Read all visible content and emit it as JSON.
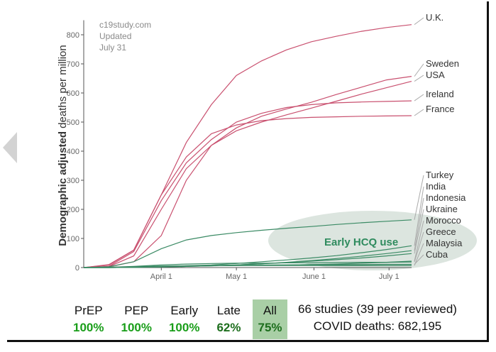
{
  "chart_data": {
    "type": "line",
    "ylabel_bold": "Demographic adjusted",
    "ylabel_rest": " deaths per million",
    "ylim": [
      0,
      850
    ],
    "yticks": [
      0,
      100,
      200,
      300,
      400,
      500,
      600,
      700,
      800
    ],
    "x_ticks": [
      "April 1",
      "May 1",
      "June 1",
      "July 1"
    ],
    "grid": false,
    "note": [
      "c19study.com",
      "Updated",
      "July 31"
    ],
    "annotation": "Early HCQ use",
    "x_index": [
      0,
      10,
      20,
      31,
      41,
      51,
      61,
      71,
      81,
      91,
      101,
      111,
      121,
      131
    ],
    "series": [
      {
        "name": "U.K.",
        "group": "red",
        "values": [
          0,
          10,
          60,
          250,
          430,
          560,
          660,
          710,
          748,
          776,
          795,
          812,
          825,
          835
        ]
      },
      {
        "name": "Sweden",
        "group": "red",
        "values": [
          0,
          2,
          20,
          110,
          300,
          420,
          480,
          520,
          545,
          568,
          595,
          620,
          645,
          657
        ]
      },
      {
        "name": "USA",
        "group": "red",
        "values": [
          0,
          3,
          40,
          200,
          340,
          420,
          470,
          500,
          525,
          548,
          572,
          596,
          618,
          640
        ]
      },
      {
        "name": "Ireland",
        "group": "red",
        "values": [
          0,
          4,
          55,
          230,
          360,
          440,
          500,
          530,
          550,
          560,
          566,
          569,
          571,
          573
        ]
      },
      {
        "name": "France",
        "group": "red",
        "values": [
          0,
          8,
          60,
          250,
          380,
          460,
          490,
          505,
          512,
          516,
          518,
          520,
          521,
          522
        ]
      },
      {
        "name": "Turkey",
        "group": "green",
        "values": [
          0,
          3,
          20,
          65,
          95,
          110,
          120,
          128,
          135,
          141,
          148,
          154,
          159,
          164
        ]
      },
      {
        "name": "India",
        "group": "green",
        "values": [
          0,
          0,
          1,
          3,
          6,
          9,
          14,
          20,
          26,
          33,
          41,
          51,
          62,
          75
        ]
      },
      {
        "name": "Indonesia",
        "group": "green",
        "values": [
          0,
          0,
          1,
          2,
          4,
          6,
          9,
          13,
          18,
          24,
          31,
          39,
          48,
          58
        ]
      },
      {
        "name": "Ukraine",
        "group": "green",
        "values": [
          0,
          0,
          1,
          2,
          4,
          6,
          9,
          13,
          17,
          22,
          27,
          33,
          40,
          48
        ]
      },
      {
        "name": "Morocco",
        "group": "green",
        "values": [
          0,
          0,
          1,
          3,
          5,
          6,
          7,
          8,
          9,
          10,
          12,
          15,
          18,
          22
        ]
      },
      {
        "name": "Greece",
        "group": "green",
        "values": [
          0,
          1,
          4,
          9,
          12,
          14,
          15,
          15,
          16,
          16,
          17,
          18,
          18,
          19
        ]
      },
      {
        "name": "Malaysia",
        "group": "green",
        "values": [
          0,
          1,
          3,
          5,
          6,
          6,
          7,
          7,
          7,
          7,
          7,
          7,
          7,
          7
        ]
      },
      {
        "name": "Cuba",
        "group": "green",
        "values": [
          0,
          0,
          1,
          3,
          5,
          7,
          8,
          9,
          9,
          10,
          10,
          10,
          11,
          11
        ]
      }
    ],
    "colors": {
      "red": "#c9506f",
      "green": "#3a8a64",
      "axis": "#555555",
      "tick": "#999999",
      "label_arrow": "#aaaaaa",
      "ellipse": "#dce5df"
    }
  },
  "stats": [
    {
      "label": "PrEP",
      "value": "100%",
      "color": "#1a9e1a"
    },
    {
      "label": "PEP",
      "value": "100%",
      "color": "#1a9e1a"
    },
    {
      "label": "Early",
      "value": "100%",
      "color": "#1a9e1a"
    },
    {
      "label": "Late",
      "value": "62%",
      "color": "#1d6e1d"
    },
    {
      "label": "All",
      "value": "75%",
      "color": "#1d6e1d"
    }
  ],
  "summary": {
    "studies": "66 studies (39 peer reviewed)",
    "deaths": "COVID deaths: 682,195"
  }
}
